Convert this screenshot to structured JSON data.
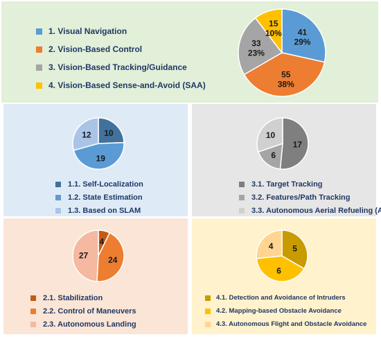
{
  "chart_data": [
    {
      "type": "pie",
      "categories": [
        "1. Visual Navigation",
        "2. Vision-Based Control",
        "3. Vision-Based Tracking/Guidance",
        "4. Vision-Based Sense-and-Avoid (SAA)"
      ],
      "values": [
        41,
        55,
        33,
        15
      ],
      "percent_labels": [
        "29%",
        "38%",
        "23%",
        "10%"
      ],
      "colors": [
        "#5b9bd5",
        "#ed7d31",
        "#a5a5a5",
        "#ffc000"
      ],
      "legend": "left"
    },
    {
      "type": "pie",
      "categories": [
        "1.1. Self-Localization",
        "1.2. State Estimation",
        "1.3. Based on SLAM"
      ],
      "values": [
        10,
        19,
        12
      ],
      "colors": [
        "#41719c",
        "#5b9bd5",
        "#a9c4e6"
      ],
      "legend": "bottom"
    },
    {
      "type": "pie",
      "categories": [
        "3.1. Target Tracking",
        "3.2. Features/Path Tracking",
        "3.3. Autonomous Aerial Refueling (AAR)"
      ],
      "values": [
        17,
        6,
        10
      ],
      "colors": [
        "#7f7f7f",
        "#a5a5a5",
        "#d0d0d0"
      ],
      "legend": "bottom"
    },
    {
      "type": "pie",
      "categories": [
        "2.1. Stabilization",
        "2.2. Control of Maneuvers",
        "2.3. Autonomous Landing"
      ],
      "values": [
        4,
        24,
        27
      ],
      "colors": [
        "#c55a11",
        "#ed7d31",
        "#f4b9a0"
      ],
      "legend": "bottom"
    },
    {
      "type": "pie",
      "categories": [
        "4.1. Detection and Avoidance of Intruders",
        "4.2. Mapping-based Obstacle Avoidance",
        "4.3. Autonomous Flight and Obstacle Avoidance"
      ],
      "values": [
        5,
        6,
        4
      ],
      "colors": [
        "#c89b00",
        "#ffc000",
        "#ffd591"
      ],
      "legend": "bottom"
    }
  ],
  "panel_colors": [
    "#e2efd9",
    "#deebf7",
    "#e7e6e6",
    "#fbe5d6",
    "#fff2cc"
  ]
}
